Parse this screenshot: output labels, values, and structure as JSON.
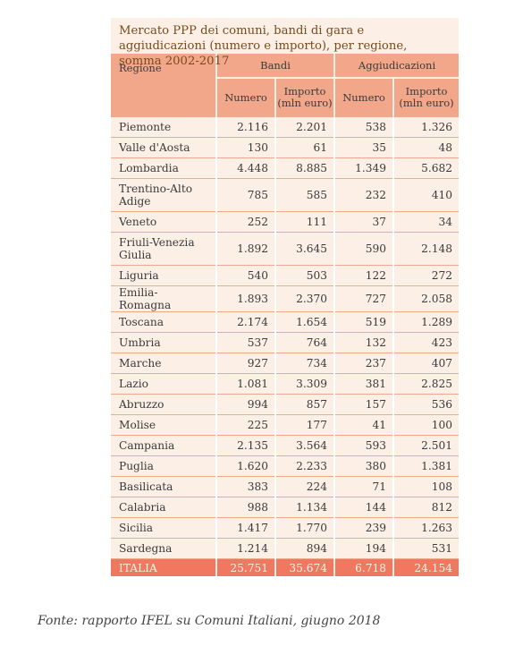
{
  "title": "Mercato PPP dei comuni, bandi di gara e aggiudicazioni (numero e importo), per regione, somma 2002-2017",
  "headers": {
    "region": "Regione",
    "bandi": "Bandi",
    "aggiudicazioni": "Aggiudicazioni",
    "numero": "Numero",
    "importo_line1": "Importo",
    "importo_line2": "(mln euro)"
  },
  "rows": [
    [
      "Piemonte",
      "2.116",
      "2.201",
      "538",
      "1.326"
    ],
    [
      "Valle d'Aosta",
      "130",
      "61",
      "35",
      "48"
    ],
    [
      "Lombardia",
      "4.448",
      "8.885",
      "1.349",
      "5.682"
    ],
    [
      "Trentino-Alto Adige",
      "785",
      "585",
      "232",
      "410"
    ],
    [
      "Veneto",
      "252",
      "111",
      "37",
      "34"
    ],
    [
      "Friuli-Venezia Giulia",
      "1.892",
      "3.645",
      "590",
      "2.148"
    ],
    [
      "Liguria",
      "540",
      "503",
      "122",
      "272"
    ],
    [
      "Emilia-Romagna",
      "1.893",
      "2.370",
      "727",
      "2.058"
    ],
    [
      "Toscana",
      "2.174",
      "1.654",
      "519",
      "1.289"
    ],
    [
      "Umbria",
      "537",
      "764",
      "132",
      "423"
    ],
    [
      "Marche",
      "927",
      "734",
      "237",
      "407"
    ],
    [
      "Lazio",
      "1.081",
      "3.309",
      "381",
      "2.825"
    ],
    [
      "Abruzzo",
      "994",
      "857",
      "157",
      "536"
    ],
    [
      "Molise",
      "225",
      "177",
      "41",
      "100"
    ],
    [
      "Campania",
      "2.135",
      "3.564",
      "593",
      "2.501"
    ],
    [
      "Puglia",
      "1.620",
      "2.233",
      "380",
      "1.381"
    ],
    [
      "Basilicata",
      "383",
      "224",
      "71",
      "108"
    ],
    [
      "Calabria",
      "988",
      "1.134",
      "144",
      "812"
    ],
    [
      "Sicilia",
      "1.417",
      "1.770",
      "239",
      "1.263"
    ],
    [
      "Sardegna",
      "1.214",
      "894",
      "194",
      "531"
    ]
  ],
  "total": [
    "ITALIA",
    "25.751",
    "35.674",
    "6.718",
    "24.154"
  ],
  "source": "Fonte: rapporto IFEL su Comuni Italiani, giugno 2018",
  "colors": {
    "header_bg": "#f2a68a",
    "panel_bg": "#fbefe6",
    "total_bg": "#f07860",
    "title_text": "#7a4a1c"
  }
}
